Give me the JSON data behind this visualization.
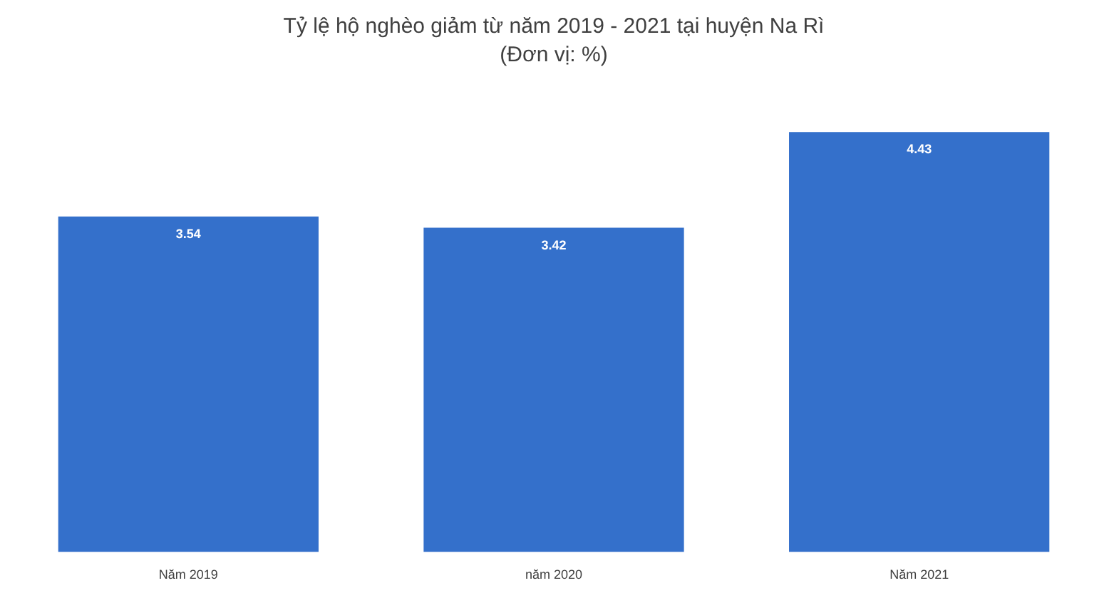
{
  "chart_data": {
    "type": "bar",
    "title": "Tỷ lệ hộ nghèo giảm từ năm 2019 - 2021 tại huyện Na Rì",
    "subtitle": "(Đơn vị: %)",
    "categories": [
      "Năm 2019",
      "năm 2020",
      "Năm 2021"
    ],
    "values": [
      3.54,
      3.42,
      4.43
    ],
    "color": "#3470cb",
    "data_labels": true,
    "grid": false,
    "legend": false
  }
}
